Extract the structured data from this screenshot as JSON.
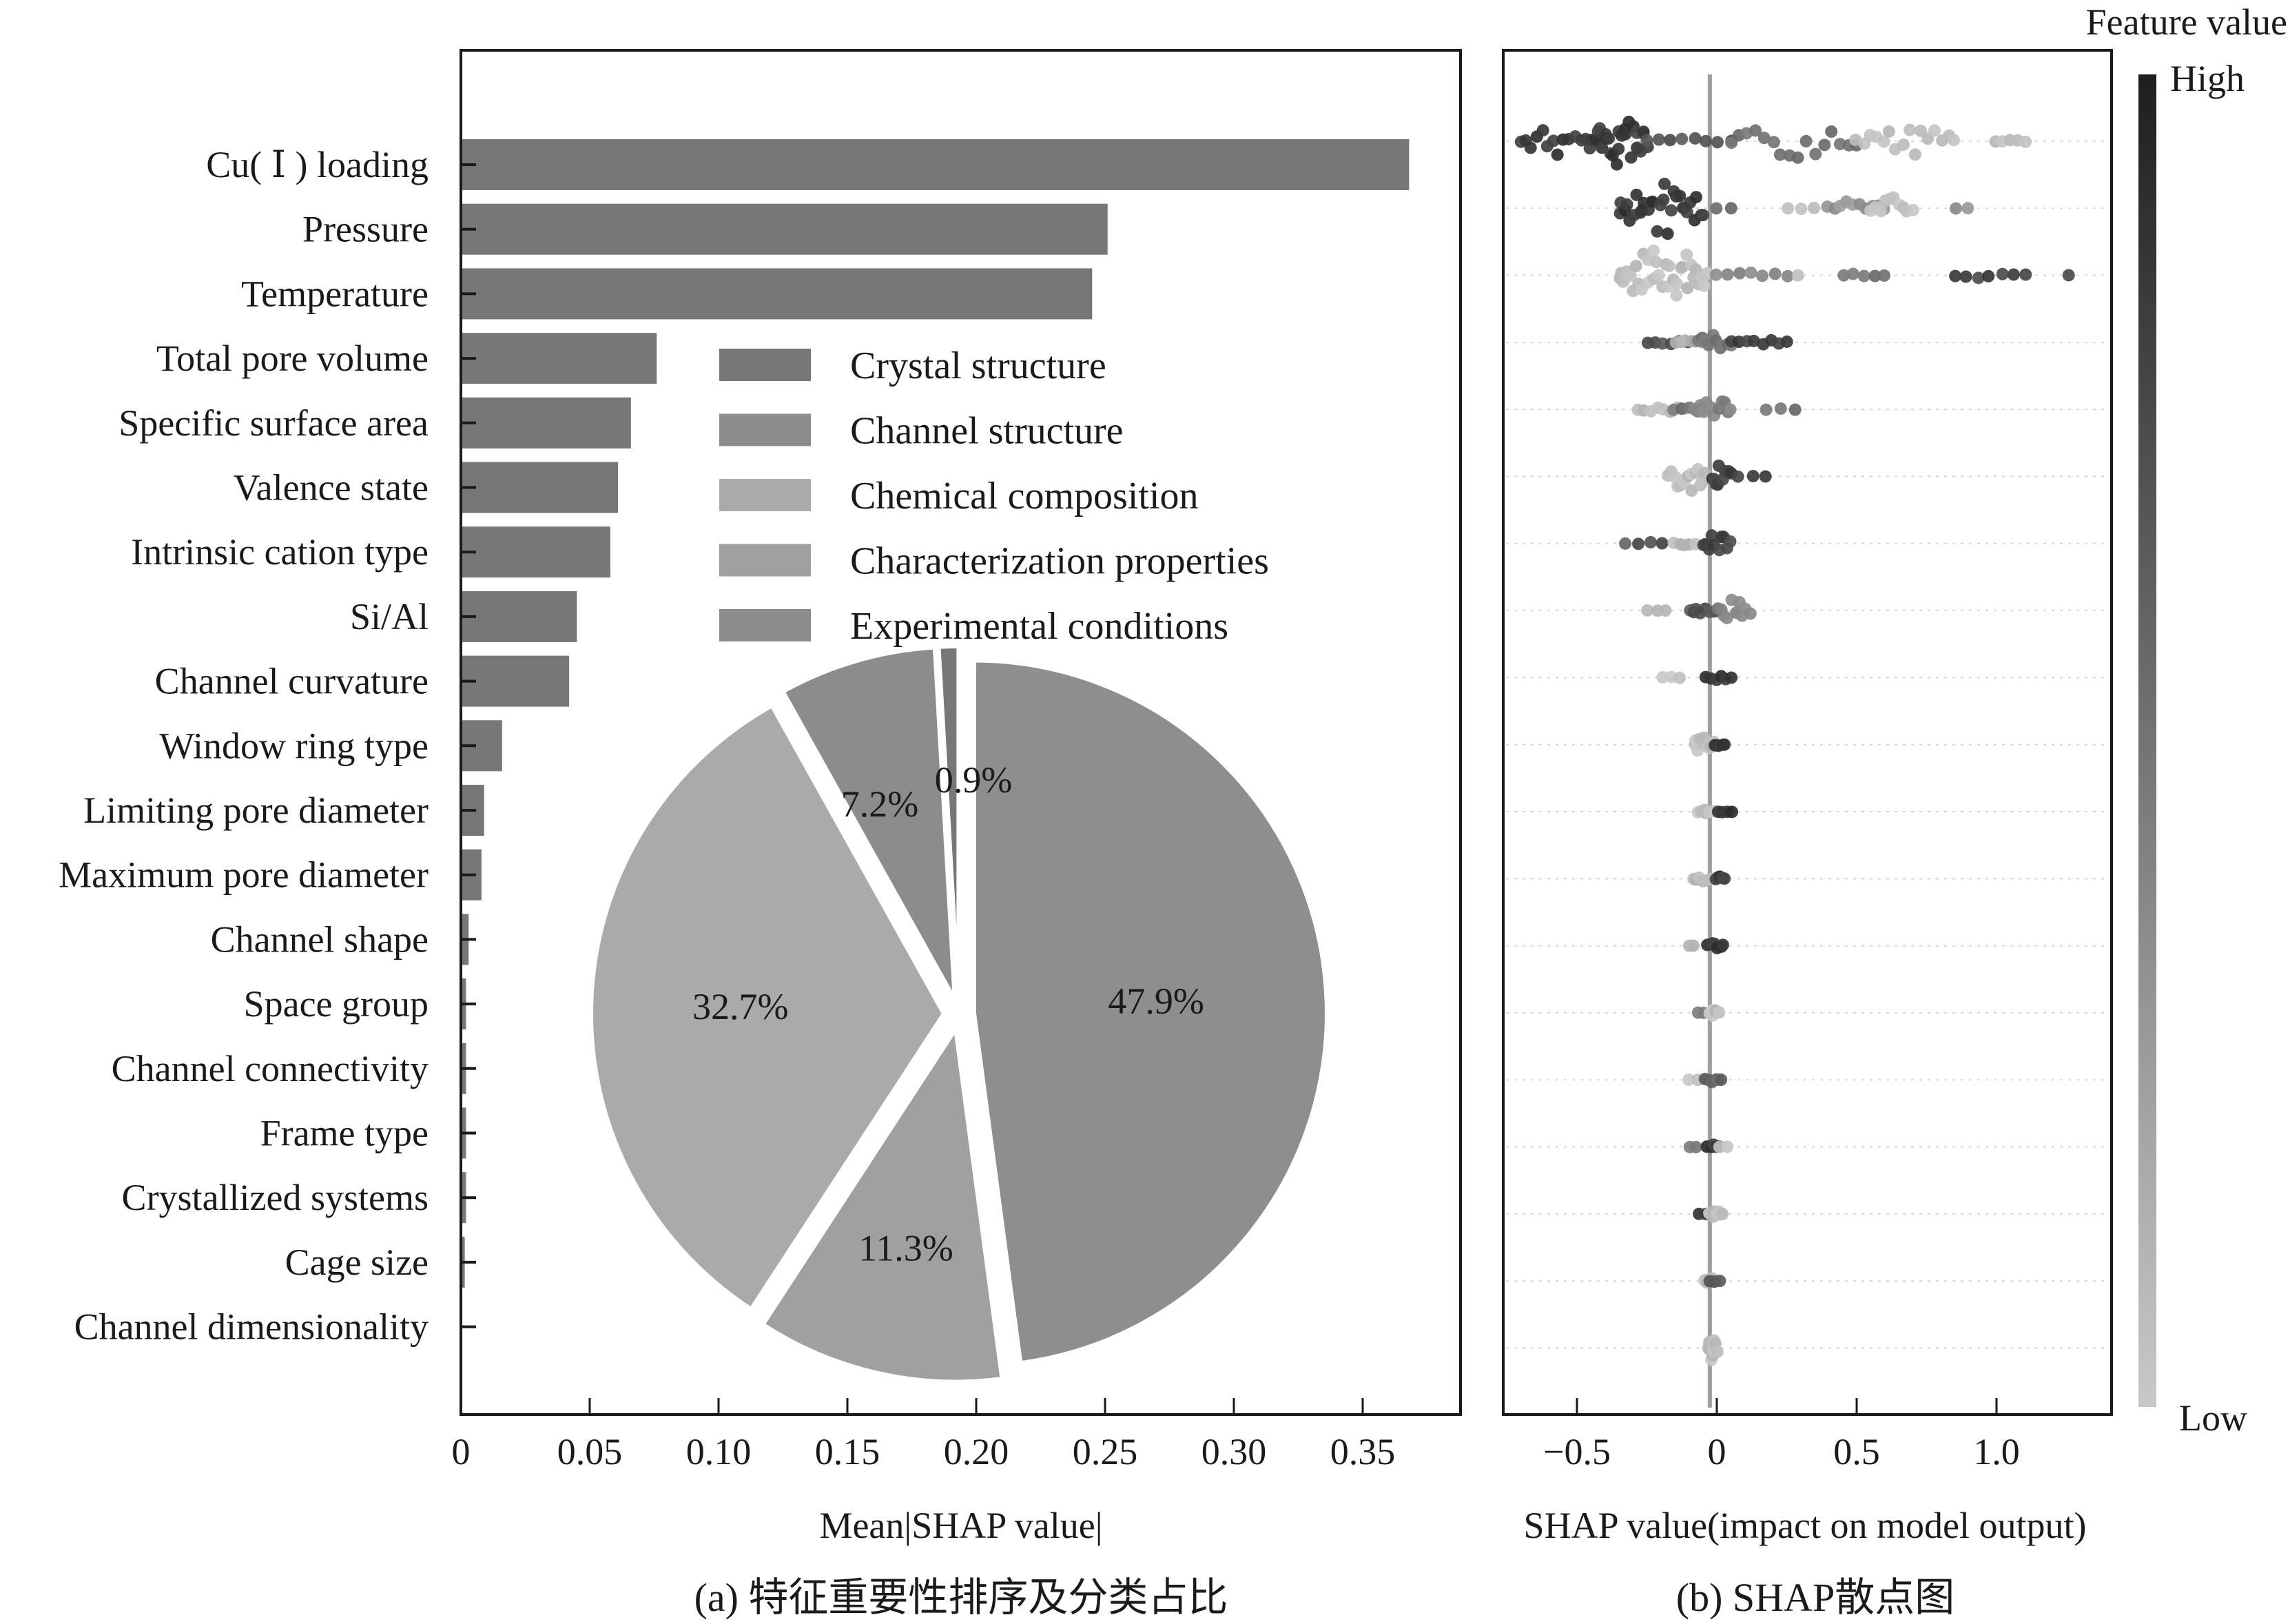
{
  "chart_data": [
    {
      "type": "bar",
      "orientation": "horizontal",
      "panel": "a",
      "caption": "(a) 特征重要性排序及分类占比",
      "xlabel": "Mean|SHAP value|",
      "ylabel": "",
      "xlim": [
        0,
        0.39
      ],
      "xticks": [
        0,
        0.05,
        0.1,
        0.15,
        0.2,
        0.25,
        0.3,
        0.35
      ],
      "xtick_labels": [
        "0",
        "0.05",
        "0.10",
        "0.15",
        "0.20",
        "0.25",
        "0.30",
        "0.35"
      ],
      "grid": false,
      "bar_color": "#777777",
      "categories": [
        "Cu( Ⅰ ) loading",
        "Pressure",
        "Temperature",
        "Total pore volume",
        "Specific surface area",
        "Valence state",
        "Intrinsic cation type",
        "Si/Al",
        "Channel curvature",
        "Window ring type",
        "Limiting pore diameter",
        "Maximum pore diameter",
        "Channel shape",
        "Space group",
        "Channel connectivity",
        "Frame type",
        "Crystallized systems",
        "Cage size",
        "Channel dimensionality"
      ],
      "values": [
        0.368,
        0.251,
        0.245,
        0.076,
        0.066,
        0.061,
        0.058,
        0.045,
        0.042,
        0.016,
        0.009,
        0.008,
        0.003,
        0.002,
        0.002,
        0.002,
        0.002,
        0.0015,
        0.0
      ]
    },
    {
      "type": "pie",
      "panel": "a-inset",
      "start": "12 o'clock, clockwise",
      "exploded": true,
      "legend": "top-right of panel (a)",
      "slices": [
        {
          "label": "Experimental conditions",
          "value": 47.9,
          "text": "47.9%",
          "color": "#8e8e8e"
        },
        {
          "label": "Characterization properties",
          "value": 11.3,
          "text": "11.3%",
          "color": "#a0a0a0"
        },
        {
          "label": "Chemical composition",
          "value": 32.7,
          "text": "32.7%",
          "color": "#aaaaaa"
        },
        {
          "label": "Channel structure",
          "value": 7.2,
          "text": "7.2%",
          "color": "#8c8c8c"
        },
        {
          "label": "Crystal structure",
          "value": 0.9,
          "text": "0.9%",
          "color": "#777777"
        }
      ],
      "legend_entries": [
        {
          "label": "Crystal structure",
          "color": "#777777"
        },
        {
          "label": "Channel structure",
          "color": "#8c8c8c"
        },
        {
          "label": "Chemical composition",
          "color": "#aaaaaa"
        },
        {
          "label": "Characterization properties",
          "color": "#a0a0a0"
        },
        {
          "label": "Experimental conditions",
          "color": "#8c8c8c"
        }
      ]
    },
    {
      "type": "scatter",
      "subtype": "beeswarm",
      "panel": "b",
      "caption": "(b) SHAP散点图",
      "xlabel": "SHAP value(impact on model output)",
      "xlim": [
        -0.77,
        1.41
      ],
      "xticks": [
        -0.5,
        0,
        0.5,
        1.0
      ],
      "xtick_labels": [
        "−0.5",
        "0",
        "0.5",
        "1.0"
      ],
      "baseline": -0.025,
      "rows_follow": "same feature order as panel (a)",
      "colorbar": {
        "title": "Feature value",
        "high_label": "High",
        "low_label": "Low",
        "high_color": "#1e1e1e",
        "low_color": "#c8c8c8"
      },
      "clusters": [
        [
          [
            -0.7,
            -0.45,
            14,
            0.85
          ],
          [
            -0.45,
            -0.25,
            26,
            0.85
          ],
          [
            -0.25,
            0.05,
            8,
            0.7
          ],
          [
            0.05,
            0.5,
            16,
            0.5
          ],
          [
            0.5,
            0.85,
            16,
            0.08
          ],
          [
            1.0,
            1.1,
            5,
            0.05
          ]
        ],
        [
          [
            -0.35,
            -0.05,
            30,
            0.85
          ],
          [
            0.0,
            0.05,
            2,
            0.6
          ],
          [
            0.25,
            0.35,
            3,
            0.1
          ],
          [
            0.4,
            0.6,
            10,
            0.3
          ],
          [
            0.55,
            0.7,
            10,
            0.05
          ],
          [
            0.85,
            0.9,
            2,
            0.3
          ]
        ],
        [
          [
            -0.35,
            -0.03,
            36,
            0.05
          ],
          [
            0.0,
            0.25,
            7,
            0.4
          ],
          [
            0.28,
            0.3,
            1,
            0.1
          ],
          [
            0.45,
            0.6,
            5,
            0.5
          ],
          [
            0.85,
            1.1,
            7,
            0.8
          ],
          [
            1.25,
            1.26,
            1,
            0.8
          ]
        ],
        [
          [
            -0.25,
            -0.1,
            6,
            0.7
          ],
          [
            -0.15,
            -0.05,
            6,
            0.15
          ],
          [
            -0.07,
            0.05,
            10,
            0.5
          ],
          [
            0.05,
            0.25,
            8,
            0.8
          ]
        ],
        [
          [
            -0.28,
            -0.12,
            8,
            0.05
          ],
          [
            -0.15,
            -0.05,
            5,
            0.5
          ],
          [
            -0.08,
            0.05,
            12,
            0.4
          ],
          [
            0.18,
            0.28,
            3,
            0.5
          ]
        ],
        [
          [
            -0.17,
            -0.03,
            16,
            0.05
          ],
          [
            -0.02,
            0.05,
            10,
            0.8
          ],
          [
            0.08,
            0.17,
            3,
            0.8
          ]
        ],
        [
          [
            -0.35,
            -0.3,
            1,
            0.5
          ],
          [
            -0.28,
            -0.2,
            3,
            0.75
          ],
          [
            -0.15,
            -0.08,
            5,
            0.1
          ],
          [
            -0.05,
            0.05,
            10,
            0.8
          ]
        ],
        [
          [
            -0.25,
            -0.18,
            3,
            0.05
          ],
          [
            -0.1,
            0.0,
            8,
            0.7
          ],
          [
            0.0,
            0.12,
            10,
            0.4
          ]
        ],
        [
          [
            -0.19,
            -0.13,
            3,
            0.05
          ],
          [
            -0.04,
            0.05,
            6,
            0.85
          ]
        ],
        [
          [
            -0.08,
            -0.01,
            10,
            0.05
          ],
          [
            -0.01,
            0.03,
            5,
            0.85
          ]
        ],
        [
          [
            -0.07,
            -0.01,
            6,
            0.05
          ],
          [
            0.0,
            0.05,
            4,
            0.85
          ]
        ],
        [
          [
            -0.08,
            -0.01,
            8,
            0.1
          ],
          [
            0.0,
            0.03,
            5,
            0.8
          ]
        ],
        [
          [
            -0.1,
            -0.08,
            2,
            0.1
          ],
          [
            -0.03,
            0.02,
            7,
            0.85
          ]
        ],
        [
          [
            -0.07,
            -0.05,
            2,
            0.5
          ],
          [
            -0.03,
            0.01,
            8,
            0.05
          ]
        ],
        [
          [
            -0.1,
            -0.07,
            2,
            0.05
          ],
          [
            -0.04,
            0.02,
            6,
            0.6
          ]
        ],
        [
          [
            -0.1,
            -0.07,
            2,
            0.5
          ],
          [
            -0.04,
            0.01,
            6,
            0.85
          ],
          [
            0.01,
            0.04,
            2,
            0.05
          ]
        ],
        [
          [
            -0.06,
            -0.04,
            2,
            0.85
          ],
          [
            -0.03,
            0.02,
            8,
            0.05
          ]
        ],
        [
          [
            -0.04,
            0.0,
            8,
            0.1
          ],
          [
            -0.03,
            0.01,
            3,
            0.7
          ]
        ],
        [
          [
            -0.03,
            0.0,
            12,
            0.05
          ]
        ]
      ]
    }
  ],
  "legend": {
    "items": [
      "Crystal structure",
      "Channel structure",
      "Chemical composition",
      "Characterization properties",
      "Experimental conditions"
    ]
  },
  "labels": {
    "panel_a_xlabel": "Mean|SHAP value|",
    "panel_a_caption": "(a) 特征重要性排序及分类占比",
    "panel_b_xlabel": "SHAP value(impact on model output)",
    "panel_b_caption": "(b) SHAP散点图",
    "colorbar_title": "Feature value",
    "colorbar_high": "High",
    "colorbar_low": "Low"
  }
}
